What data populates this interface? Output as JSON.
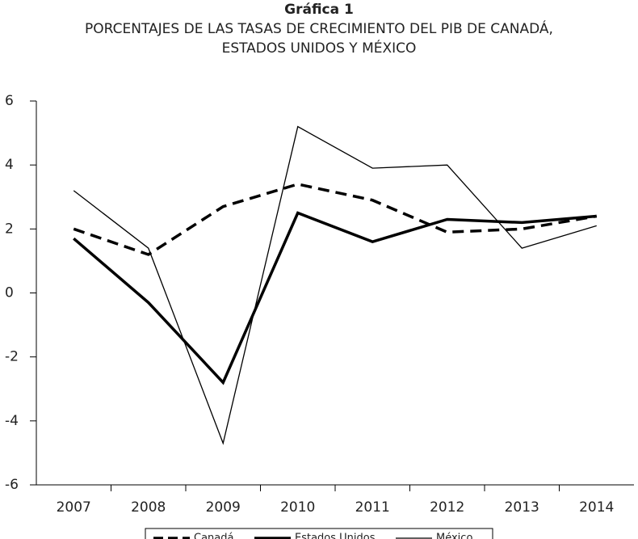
{
  "chart_data": {
    "type": "line",
    "title": "Gráfica 1",
    "subtitle": [
      "PORCENTAJES DE LAS TASAS DE CRECIMIENTO DEL PIB DE CANADÁ,",
      "ESTADOS UNIDOS Y MÉXICO"
    ],
    "categories": [
      "2007",
      "2008",
      "2009",
      "2010",
      "2011",
      "2012",
      "2013",
      "2014"
    ],
    "series": [
      {
        "name": "Canadá",
        "color": "#000000",
        "line_width": 3.5,
        "dashed": true,
        "values": [
          2.0,
          1.2,
          2.7,
          3.4,
          2.9,
          1.9,
          2.0,
          2.4
        ]
      },
      {
        "name": "Estados Unidos",
        "color": "#000000",
        "line_width": 3.5,
        "dashed": false,
        "values": [
          1.7,
          -0.3,
          -2.8,
          2.5,
          1.6,
          2.3,
          2.2,
          2.4
        ]
      },
      {
        "name": "México",
        "color": "#000000",
        "line_width": 1.3,
        "dashed": false,
        "values": [
          3.2,
          1.4,
          -4.7,
          5.2,
          3.9,
          4.0,
          1.4,
          2.1
        ]
      }
    ],
    "ylim": [
      -6,
      6
    ],
    "yticks": [
      -6,
      -4,
      -2,
      0,
      2,
      4,
      6
    ],
    "legend": "bottom"
  }
}
